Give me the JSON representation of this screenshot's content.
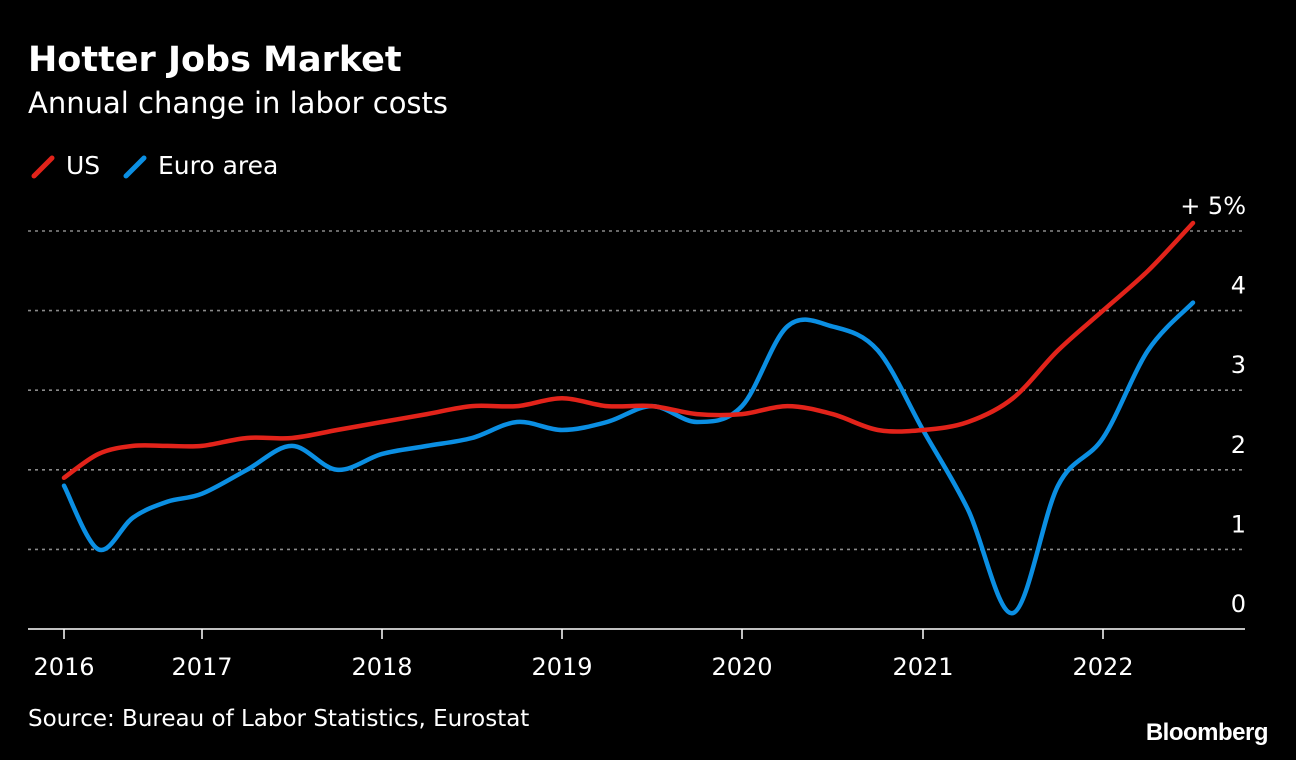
{
  "header": {
    "title": "Hotter Jobs Market",
    "subtitle": "Annual change in labor costs"
  },
  "footer": {
    "source": "Source: Bureau of Labor Statistics, Eurostat",
    "brand": "Bloomberg"
  },
  "colors": {
    "background": "#000000",
    "us": "#e2231a",
    "euro_area": "#0b8fe3",
    "grid": "#8a8a8a",
    "axis": "#ffffff"
  },
  "chart_data": {
    "type": "line",
    "title": "Hotter Jobs Market",
    "subtitle": "Annual change in labor costs",
    "xlabel": "",
    "ylabel": "",
    "ylim": [
      0,
      5
    ],
    "xlim": [
      2016.0,
      2022.75
    ],
    "yticks": [
      {
        "value": 0,
        "label": "0"
      },
      {
        "value": 1,
        "label": "1"
      },
      {
        "value": 2,
        "label": "2"
      },
      {
        "value": 3,
        "label": "3"
      },
      {
        "value": 4,
        "label": "4"
      },
      {
        "value": 5,
        "label": "+ 5%"
      }
    ],
    "xticks": [
      {
        "value": 2016,
        "label": "2016"
      },
      {
        "value": 2017,
        "label": "2017"
      },
      {
        "value": 2018,
        "label": "2018"
      },
      {
        "value": 2019,
        "label": "2019"
      },
      {
        "value": 2020,
        "label": "2020"
      },
      {
        "value": 2021,
        "label": "2021"
      },
      {
        "value": 2022,
        "label": "2022"
      }
    ],
    "grid": true,
    "legend": "top-left",
    "series": [
      {
        "name": "US",
        "color": "#e2231a",
        "x": [
          2016.0,
          2016.25,
          2016.5,
          2016.75,
          2017.0,
          2017.25,
          2017.5,
          2017.75,
          2018.0,
          2018.25,
          2018.5,
          2018.75,
          2019.0,
          2019.25,
          2019.5,
          2019.75,
          2020.0,
          2020.25,
          2020.5,
          2020.75,
          2021.0,
          2021.25,
          2021.5,
          2021.75,
          2022.0,
          2022.25,
          2022.5
        ],
        "values": [
          1.9,
          2.2,
          2.3,
          2.3,
          2.3,
          2.4,
          2.4,
          2.5,
          2.6,
          2.7,
          2.8,
          2.8,
          2.9,
          2.8,
          2.8,
          2.7,
          2.7,
          2.8,
          2.7,
          2.5,
          2.5,
          2.6,
          2.9,
          3.5,
          4.0,
          4.5,
          5.1
        ]
      },
      {
        "name": "Euro area",
        "color": "#0b8fe3",
        "x": [
          2016.0,
          2016.25,
          2016.5,
          2016.75,
          2017.0,
          2017.25,
          2017.5,
          2017.75,
          2018.0,
          2018.25,
          2018.5,
          2018.75,
          2019.0,
          2019.25,
          2019.5,
          2019.75,
          2020.0,
          2020.25,
          2020.5,
          2020.75,
          2021.0,
          2021.25,
          2021.5,
          2021.75,
          2022.0,
          2022.25,
          2022.5
        ],
        "values": [
          1.8,
          1.0,
          1.4,
          1.6,
          1.7,
          2.0,
          2.3,
          2.0,
          2.2,
          2.3,
          2.4,
          2.6,
          2.5,
          2.6,
          2.8,
          2.6,
          2.8,
          3.8,
          3.8,
          3.5,
          2.5,
          1.5,
          0.2,
          1.8,
          2.4,
          3.5,
          4.1
        ]
      }
    ]
  }
}
